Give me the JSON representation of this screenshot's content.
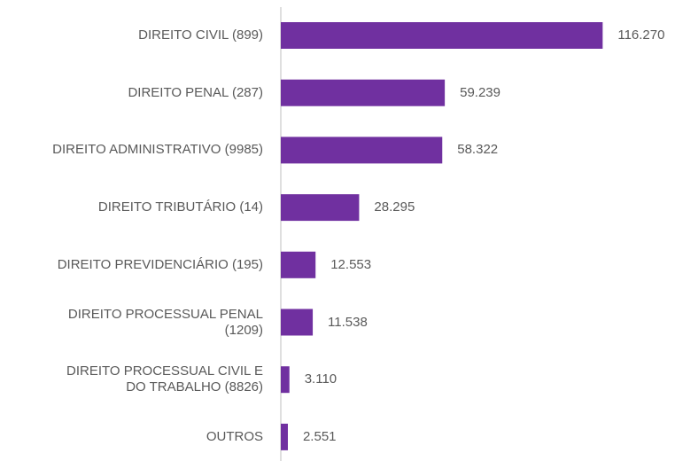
{
  "chart_data": {
    "type": "bar",
    "orientation": "horizontal",
    "categories": [
      "DIREITO CIVIL (899)",
      "DIREITO PENAL (287)",
      "DIREITO ADMINISTRATIVO (9985)",
      "DIREITO TRIBUTÁRIO (14)",
      "DIREITO PREVIDENCIÁRIO (195)",
      "DIREITO PROCESSUAL PENAL\n(1209)",
      "DIREITO PROCESSUAL CIVIL E\nDO TRABALHO (8826)",
      "OUTROS"
    ],
    "values": [
      116270,
      59239,
      58322,
      28295,
      12553,
      11538,
      3110,
      2551
    ],
    "value_labels": [
      "116.270",
      "59.239",
      "58.322",
      "28.295",
      "12.553",
      "11.538",
      "3.110",
      "2.551"
    ],
    "color": "#7030a0",
    "xlim": [
      0,
      120000
    ]
  }
}
